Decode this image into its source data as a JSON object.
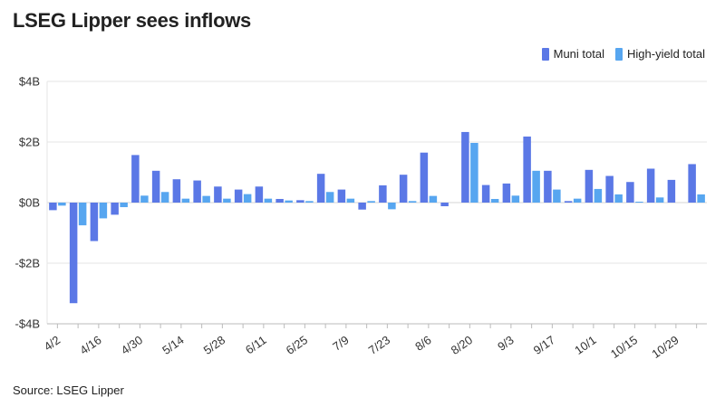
{
  "title": "LSEG Lipper sees inflows",
  "source": "Source: LSEG Lipper",
  "chart_data": {
    "type": "bar",
    "title": "LSEG Lipper sees inflows",
    "xlabel": "",
    "ylabel": "",
    "ylim": [
      -4,
      4
    ],
    "yticks": [
      {
        "value": 4,
        "label": "$4B"
      },
      {
        "value": 2,
        "label": "$2B"
      },
      {
        "value": 0,
        "label": "$0B"
      },
      {
        "value": -2,
        "label": "-$2B"
      },
      {
        "value": -4,
        "label": "-$4B"
      }
    ],
    "categories": [
      "4/2",
      "4/9",
      "4/16",
      "4/23",
      "4/30",
      "5/7",
      "5/14",
      "5/21",
      "5/28",
      "6/4",
      "6/11",
      "6/18",
      "6/25",
      "7/2",
      "7/9",
      "7/16",
      "7/23",
      "7/30",
      "8/6",
      "8/13",
      "8/20",
      "8/27",
      "9/3",
      "9/10",
      "9/17",
      "9/24",
      "10/1",
      "10/8",
      "10/15",
      "10/22",
      "10/29",
      "11/5"
    ],
    "xtick_labels": [
      "4/2",
      "4/16",
      "4/30",
      "5/14",
      "5/28",
      "6/11",
      "6/25",
      "7/9",
      "7/23",
      "8/6",
      "8/20",
      "9/3",
      "9/17",
      "10/1",
      "10/15",
      "10/29"
    ],
    "legend_position": "top-right",
    "grid": true,
    "series": [
      {
        "name": "Muni total",
        "color": "#5b78e6",
        "values": [
          -0.25,
          -3.32,
          -1.27,
          -0.4,
          1.57,
          1.05,
          0.77,
          0.73,
          0.53,
          0.43,
          0.53,
          0.12,
          0.08,
          0.95,
          0.43,
          -0.23,
          0.57,
          0.92,
          1.65,
          -0.12,
          2.33,
          0.58,
          0.63,
          2.18,
          1.05,
          0.05,
          1.08,
          0.88,
          0.68,
          1.12,
          0.75,
          1.27
        ]
      },
      {
        "name": "High-yield total",
        "color": "#57a6f0",
        "values": [
          -0.1,
          -0.75,
          -0.52,
          -0.15,
          0.23,
          0.35,
          0.13,
          0.22,
          0.13,
          0.28,
          0.13,
          0.07,
          0.05,
          0.35,
          0.13,
          0.05,
          -0.22,
          0.05,
          0.22,
          0.0,
          1.97,
          0.12,
          0.23,
          1.05,
          0.43,
          0.13,
          0.45,
          0.27,
          0.03,
          0.17,
          0.0,
          0.27
        ]
      }
    ]
  }
}
